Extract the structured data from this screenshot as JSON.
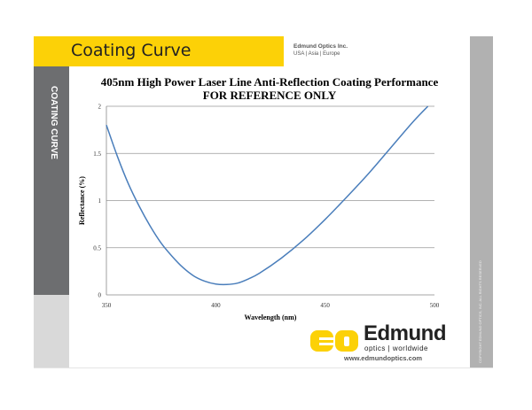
{
  "header": {
    "title": "Coating Curve",
    "company": "Edmund Optics Inc.",
    "regions": "USA | Asia | Europe"
  },
  "sidebar": {
    "label": "COATING CURVE"
  },
  "copyright": "COPYRIGHT EDMUND OPTICS, INC. ALL RIGHTS RESERVED",
  "footer": {
    "logo_initials": "EO",
    "brand": "Edmund",
    "tagline": "optics | worldwide",
    "url": "www.edmundoptics.com"
  },
  "colors": {
    "accent": "#fcd107",
    "line": "#4a7ebb"
  },
  "chart_data": {
    "type": "line",
    "title": "405nm High Power Laser Line Anti-Reflection Coating Performance",
    "subtitle": "FOR REFERENCE ONLY",
    "xlabel": "Wavelength (nm)",
    "ylabel": "Reflectance (%)",
    "xlim": [
      350,
      500
    ],
    "ylim": [
      0,
      2
    ],
    "xticks": [
      "350",
      "400",
      "450",
      "500"
    ],
    "yticks": [
      "0",
      "0.5",
      "1",
      "1.5",
      "2"
    ],
    "grid": "horizontal",
    "series": [
      {
        "name": "Reflectance",
        "x": [
          350,
          355,
          360,
          365,
          370,
          375,
          380,
          385,
          390,
          395,
          400,
          405,
          410,
          415,
          420,
          430,
          440,
          450,
          460,
          470,
          480,
          490,
          497
        ],
        "y": [
          1.8,
          1.47,
          1.18,
          0.94,
          0.73,
          0.55,
          0.41,
          0.29,
          0.2,
          0.145,
          0.115,
          0.11,
          0.125,
          0.17,
          0.23,
          0.39,
          0.58,
          0.8,
          1.04,
          1.29,
          1.56,
          1.83,
          2.0
        ]
      }
    ]
  }
}
